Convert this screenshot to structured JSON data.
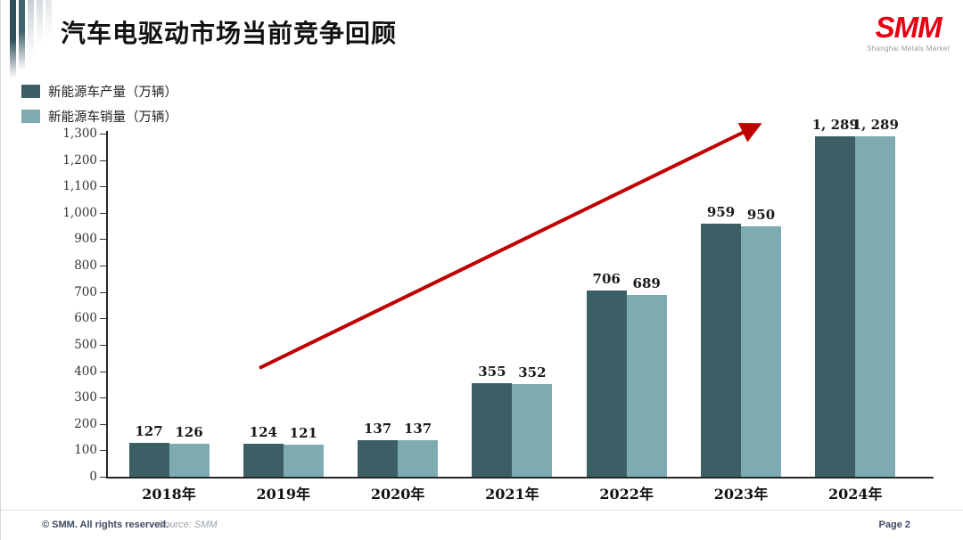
{
  "slide": {
    "title": "汽车电驱动市场当前竞争回顾",
    "logo": {
      "text": "SMM",
      "subtitle": "Shanghai Metals Market",
      "color": "#e60012"
    },
    "footer": {
      "copyright": "© SMM. All rights reserved.",
      "source": "Source: SMM",
      "page": "Page 2"
    }
  },
  "legend": [
    {
      "label": "新能源车产量（万辆）",
      "color": "#3c5f66"
    },
    {
      "label": "新能源车销量（万辆）",
      "color": "#7dabb1"
    }
  ],
  "chart_data": {
    "type": "bar",
    "title": "",
    "categories": [
      "2018年",
      "2019年",
      "2020年",
      "2021年",
      "2022年",
      "2023年",
      "2024年"
    ],
    "series": [
      {
        "name": "新能源车产量（万辆）",
        "color": "#3c5f66",
        "values": [
          127,
          124,
          137,
          355,
          706,
          959,
          1289
        ],
        "labels": [
          "127",
          "124",
          "137",
          "355",
          "706",
          "959",
          "1, 289"
        ]
      },
      {
        "name": "新能源车销量（万辆）",
        "color": "#7dabb1",
        "values": [
          126,
          121,
          137,
          352,
          689,
          950,
          1289
        ],
        "labels": [
          "126",
          "121",
          "137",
          "352",
          "689",
          "950",
          "1, 289"
        ]
      }
    ],
    "xlabel": "",
    "ylabel": "",
    "ylim": [
      0,
      1300
    ],
    "ytick_step": 100,
    "grid": false,
    "legend_position": "top-left",
    "annotation": {
      "type": "trend-arrow",
      "color": "#c00000"
    }
  }
}
